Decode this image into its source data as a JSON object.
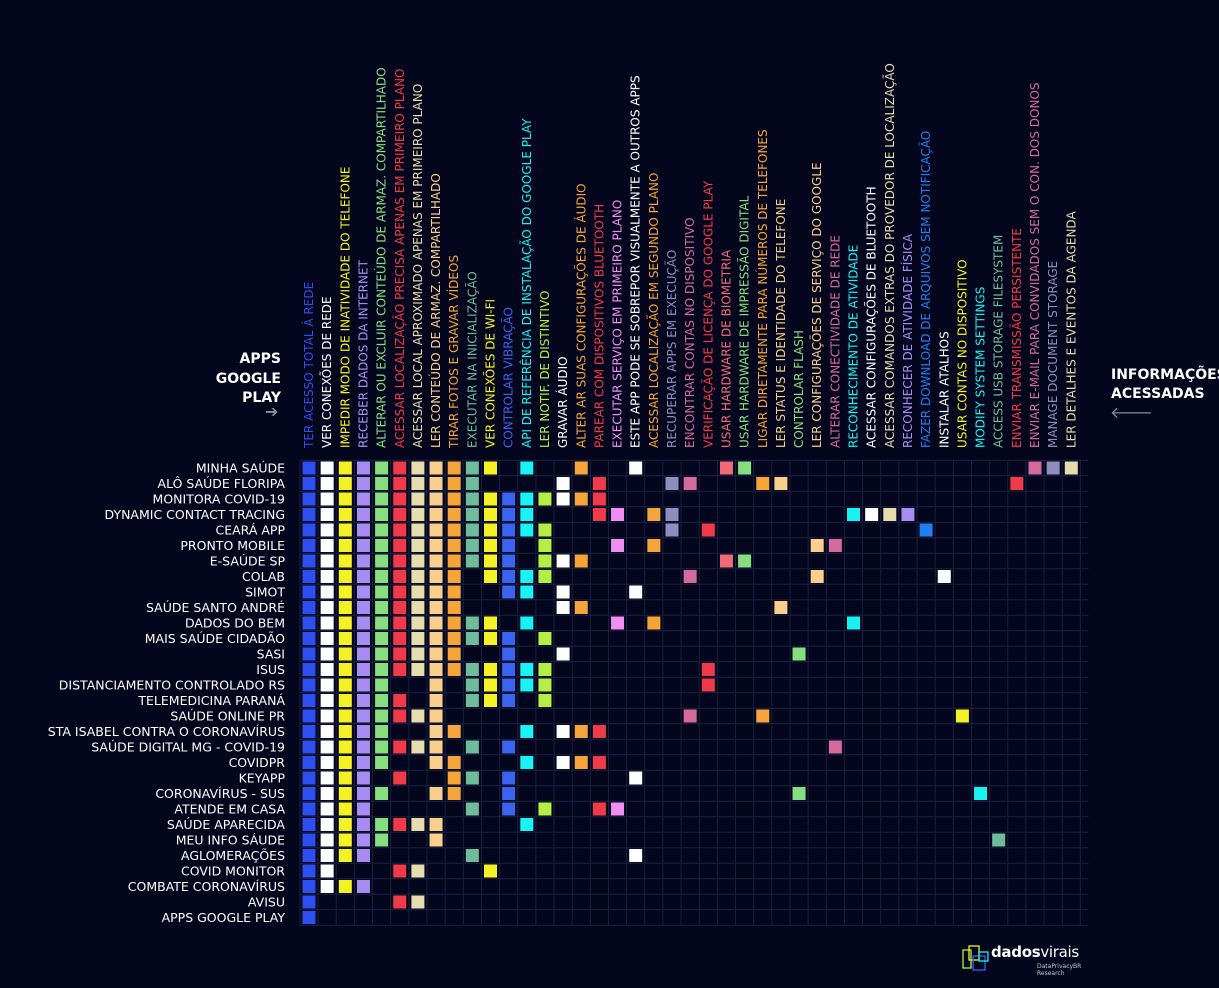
{
  "header": {
    "apps_title": [
      "APPS",
      "GOOGLE",
      "PLAY"
    ],
    "info_title": [
      "INFORMAÇÕES",
      "ACESSADAS"
    ]
  },
  "logo": {
    "name_bold": "dados",
    "name_rest": "virais",
    "sub1": "DataPrivacyBR",
    "sub2": "Research"
  },
  "chart_data": {
    "type": "heatmap",
    "permissions": [
      {
        "label": "TER ACESSO TOTAL À REDE",
        "color": "#2e4ff0"
      },
      {
        "label": "VER CONEXÕES DE REDE",
        "color": "#ffffff"
      },
      {
        "label": "IMPEDIR MODO DE INATIVIDADE DO TELEFONE",
        "color": "#f4f224"
      },
      {
        "label": "RECEBER DADOS DA INTERNET",
        "color": "#a98cf2"
      },
      {
        "label": "ALTERAR OU EXCLUIR CONTEÚDO DE ARMAZ. COMPARTILHADO",
        "color": "#86df7f"
      },
      {
        "label": "ACESSAR LOCALIZAÇÃO PRECISA APENAS EM PRIMEIRO PLANO",
        "color": "#f03a4a"
      },
      {
        "label": "ACESSAR LOCAL APROXIMADO APENAS EM PRIMEIRO PLANO",
        "color": "#e6dcae"
      },
      {
        "label": "LER CONTEÚDO DE ARMAZ. COMPARTILHADO",
        "color": "#f8cf8c"
      },
      {
        "label": "TIRAR FOTOS E GRAVAR VÍDEOS",
        "color": "#f5a53a"
      },
      {
        "label": "EXECUTAR NA INICIALIZAÇÃO",
        "color": "#6fbc9a"
      },
      {
        "label": "VER CONEXÕES DE WI-FI",
        "color": "#f4f224"
      },
      {
        "label": "CONTROLAR VIBRAÇÃO",
        "color": "#3a63f0"
      },
      {
        "label": "API DE REFERÊNCIA DE INSTALAÇÃO DO GOOGLE PLAY",
        "color": "#18f2f2"
      },
      {
        "label": "LER NOTIF. DE DISTINTIVO",
        "color": "#b3ee44"
      },
      {
        "label": "GRAVAR ÁUDIO",
        "color": "#ffffff"
      },
      {
        "label": "ALTER AR SUAS CONFIGURAÇÕES DE ÁUDIO",
        "color": "#f5a53a"
      },
      {
        "label": "PAREAR COM DISPOSITIVOS BLUETOOTH",
        "color": "#f03a4a"
      },
      {
        "label": "EXECUTAR SERVIÇO EM PRIMEIRO PLANO",
        "color": "#f08ef2"
      },
      {
        "label": "ESTE APP PODE SE SOBREPOR VISUALMENTE A OUTROS APPS",
        "color": "#ffffff"
      },
      {
        "label": "ACESSAR LOCALIZAÇÃO EM SEGUNDO PLANO",
        "color": "#f5a53a"
      },
      {
        "label": "RECUPERAR APPS EM EXECUÇÃO",
        "color": "#8e8fc0"
      },
      {
        "label": "ENCONTRAR CONTAS NO DISPOSITIVO",
        "color": "#d46b9c"
      },
      {
        "label": "VERIFICAÇÃO DE LICENÇA DO GOOGLE PLAY",
        "color": "#f03a4a"
      },
      {
        "label": "USAR HARDWARE DE BIOMETRIA",
        "color": "#f06a78"
      },
      {
        "label": "USAR HARDWARE DE IMPRESSÃO DIGITAL",
        "color": "#86df7f"
      },
      {
        "label": "LIGAR DIRETAMENTE PARA NÚMEROS DE TELEFONES",
        "color": "#f5a53a"
      },
      {
        "label": "LER STATUS E IDENTIDADE DO TELEFONE",
        "color": "#f8cf8c"
      },
      {
        "label": "CONTROLAR FLASH",
        "color": "#86df7f"
      },
      {
        "label": "LER CONFIGURAÇÕES DE SERVIÇO DO GOOGLE",
        "color": "#f8cf8c"
      },
      {
        "label": "ALTERAR CONECTIVIDADE DE REDE",
        "color": "#d46b9c"
      },
      {
        "label": "RECONHECIMENTO DE ATIVIDADE",
        "color": "#18f2f2"
      },
      {
        "label": "ACESSAR CONFIGURAÇÕES DE BLUETOOTH",
        "color": "#ffffff"
      },
      {
        "label": "ACESSAR COMANDOS EXTRAS DO PROVEDOR DE LOCALIZAÇÃO",
        "color": "#e6dcae"
      },
      {
        "label": "RECONHECER DE ATIVIDADE FÍSICA",
        "color": "#a98cf2"
      },
      {
        "label": "FAZER DOWNLOAD DE ARQUIVOS SEM NOTIFICAÇÃO",
        "color": "#1f7ef0"
      },
      {
        "label": "INSTALAR ATALHOS",
        "color": "#ffffff"
      },
      {
        "label": "USAR CONTAS NO DISPOSITIVO",
        "color": "#f4f224"
      },
      {
        "label": "MODIFY SYSTEM SETTINGS",
        "color": "#18f2f2"
      },
      {
        "label": "ACCESS USB STORAGE FILESYSTEM",
        "color": "#6fbc9a"
      },
      {
        "label": "ENVIAR TRANSMISSÃO PERSISTENTE",
        "color": "#f03a4a"
      },
      {
        "label": "ENVIAR E-MAIL PARA CONVIDADOS SEM O CON. DOS DONOS",
        "color": "#d46b9c"
      },
      {
        "label": "MANAGE DOCUMENT STORAGE",
        "color": "#8e8fc0"
      },
      {
        "label": "LER DETALHES E EVENTOS DA AGENDA",
        "color": "#e6dcae"
      }
    ],
    "apps": [
      "MINHA SAÚDE",
      "ALÔ SAÚDE FLORIPA",
      "MONITORA COVID-19",
      "DYNAMIC CONTACT TRACING",
      "CEARÁ APP",
      "PRONTO MOBILE",
      "E-SAÚDE SP",
      "COLAB",
      "SIMOT",
      "SAÚDE SANTO ANDRÉ",
      "DADOS DO BEM",
      "MAIS SAÚDE CIDADÃO",
      "SASI",
      "ISUS",
      "DISTANCIAMENTO CONTROLADO RS",
      "TELEMEDICINA PARANÁ",
      "SAÚDE ONLINE PR",
      "STA ISABEL CONTRA O CORONAVÍRUS",
      "SAÚDE DIGITAL MG - COVID-19",
      "COVIDPR",
      "KEYAPP",
      "CORONAVÍRUS - SUS",
      "ATENDE EM CASA",
      "SAÚDE APARECIDA",
      "MEU INFO SÁUDE",
      "AGLOMERAÇÕES",
      "COVID MONITOR",
      "COMBATE CORONAVÍRUS",
      "AVISU",
      "APPS GOOGLE PLAY"
    ],
    "cells": [
      [
        0,
        1,
        2,
        3,
        4,
        5,
        6,
        7,
        8,
        9,
        10,
        12,
        15,
        18,
        23,
        24,
        40,
        41,
        42
      ],
      [
        0,
        1,
        2,
        3,
        4,
        5,
        6,
        7,
        8,
        9,
        14,
        16,
        20,
        21,
        25,
        26,
        39
      ],
      [
        0,
        1,
        2,
        3,
        4,
        5,
        6,
        7,
        8,
        9,
        10,
        11,
        12,
        13,
        14,
        15,
        16
      ],
      [
        0,
        1,
        2,
        3,
        4,
        5,
        6,
        7,
        8,
        9,
        10,
        11,
        12,
        16,
        17,
        19,
        20,
        30,
        31,
        32,
        33
      ],
      [
        0,
        1,
        2,
        3,
        4,
        5,
        6,
        7,
        8,
        9,
        10,
        11,
        12,
        13,
        20,
        22,
        34
      ],
      [
        0,
        1,
        2,
        3,
        4,
        5,
        6,
        7,
        8,
        9,
        10,
        11,
        13,
        17,
        19,
        28,
        29
      ],
      [
        0,
        1,
        2,
        3,
        4,
        5,
        6,
        7,
        8,
        9,
        10,
        11,
        13,
        14,
        15,
        23,
        24
      ],
      [
        0,
        1,
        2,
        3,
        4,
        5,
        6,
        7,
        8,
        10,
        11,
        12,
        13,
        21,
        28,
        35
      ],
      [
        0,
        1,
        2,
        3,
        4,
        5,
        6,
        7,
        8,
        11,
        12,
        14,
        18
      ],
      [
        0,
        1,
        2,
        3,
        4,
        5,
        6,
        7,
        8,
        14,
        15,
        26
      ],
      [
        0,
        1,
        2,
        3,
        4,
        5,
        6,
        7,
        8,
        9,
        10,
        12,
        17,
        19,
        30
      ],
      [
        0,
        1,
        2,
        3,
        4,
        5,
        6,
        7,
        8,
        9,
        10,
        11,
        13
      ],
      [
        0,
        1,
        2,
        3,
        4,
        5,
        6,
        7,
        8,
        11,
        14,
        27
      ],
      [
        0,
        1,
        2,
        3,
        4,
        5,
        6,
        7,
        8,
        9,
        10,
        11,
        12,
        13,
        22
      ],
      [
        0,
        1,
        2,
        3,
        4,
        7,
        9,
        10,
        11,
        12,
        13,
        22
      ],
      [
        0,
        1,
        2,
        3,
        4,
        5,
        7,
        9,
        10,
        11,
        13
      ],
      [
        0,
        1,
        2,
        3,
        4,
        5,
        6,
        7,
        21,
        25,
        36
      ],
      [
        0,
        1,
        2,
        3,
        4,
        7,
        8,
        12,
        14,
        15,
        16
      ],
      [
        0,
        1,
        2,
        3,
        4,
        5,
        6,
        7,
        9,
        11,
        29
      ],
      [
        0,
        1,
        2,
        3,
        4,
        7,
        8,
        12,
        14,
        15,
        16
      ],
      [
        0,
        1,
        2,
        3,
        5,
        8,
        9,
        11,
        18
      ],
      [
        0,
        1,
        2,
        3,
        4,
        7,
        8,
        11,
        27,
        37
      ],
      [
        0,
        1,
        2,
        3,
        9,
        11,
        13,
        16,
        17
      ],
      [
        0,
        1,
        2,
        3,
        4,
        5,
        6,
        7,
        12
      ],
      [
        0,
        1,
        2,
        3,
        4,
        7,
        38
      ],
      [
        0,
        1,
        2,
        3,
        9,
        18
      ],
      [
        0,
        1,
        5,
        6,
        10
      ],
      [
        0,
        1,
        2,
        3
      ],
      [
        0,
        5,
        6
      ],
      [
        0
      ]
    ]
  }
}
